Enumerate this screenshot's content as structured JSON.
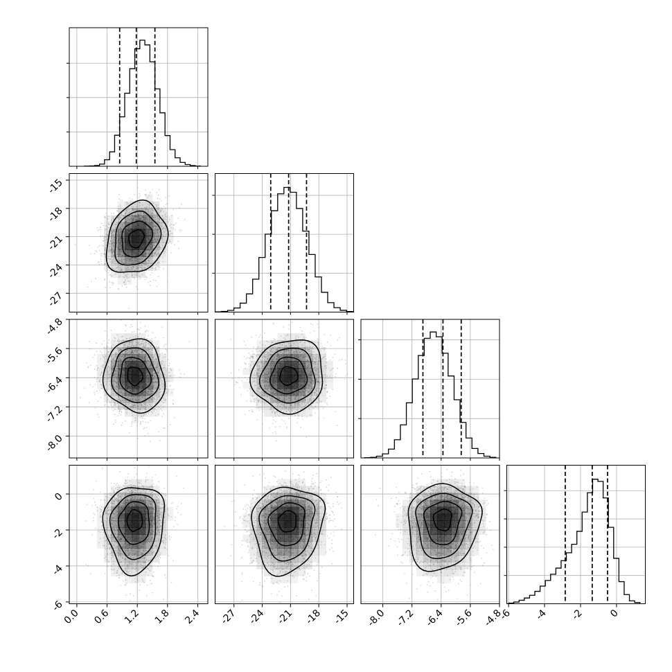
{
  "chart_data": {
    "type": "corner",
    "grid": true,
    "colors": {
      "frame": "#000000",
      "grid": "#b0b0b0",
      "points": "#888888",
      "density": "#000000"
    },
    "params": [
      {
        "ticks": [
          "0.0",
          "0.6",
          "1.2",
          "1.8",
          "2.4"
        ],
        "tick_values": [
          0.0,
          0.6,
          1.2,
          1.8,
          2.4
        ],
        "range": [
          -0.15,
          2.6
        ],
        "hist": {
          "edges_range": [
            0.15,
            2.45
          ],
          "counts": [
            1,
            3,
            7,
            19,
            57,
            126,
            271,
            432,
            638,
            852,
            1026,
            1101,
            1060,
            912,
            676,
            467,
            268,
            145,
            74,
            34,
            15,
            6,
            2
          ],
          "ymax": 1210,
          "y_grid": [
            300,
            600,
            900
          ]
        },
        "quantiles": [
          0.85,
          1.18,
          1.55
        ]
      },
      {
        "ticks": [
          "-27",
          "-24",
          "-21",
          "-18",
          "-15"
        ],
        "tick_values": [
          -27,
          -24,
          -21,
          -18,
          -15
        ],
        "range": [
          -29.0,
          -14.3
        ],
        "hist": {
          "edges_range": [
            -29.0,
            -14.4
          ],
          "counts": [
            3,
            9,
            22,
            53,
            115,
            234,
            423,
            702,
            1001,
            1302,
            1520,
            1602,
            1540,
            1331,
            1040,
            740,
            452,
            254,
            121,
            57,
            23,
            8
          ],
          "ymax": 1780,
          "y_grid": [
            500,
            1000,
            1500
          ]
        },
        "quantiles": [
          -23.1,
          -21.2,
          -19.3
        ]
      },
      {
        "ticks": [
          "-8.0",
          "-7.2",
          "-6.4",
          "-5.6",
          "-4.8"
        ],
        "tick_values": [
          -8.0,
          -7.2,
          -6.4,
          -5.6,
          -4.8
        ],
        "range": [
          -8.6,
          -4.8
        ],
        "hist": {
          "edges_range": [
            -8.5,
            -4.9
          ],
          "counts": [
            3,
            8,
            22,
            52,
            112,
            231,
            420,
            700,
            1003,
            1301,
            1519,
            1600,
            1539,
            1330,
            1041,
            739,
            451,
            253,
            120,
            56,
            22,
            8
          ],
          "ymax": 1760,
          "y_grid": [
            500,
            1000,
            1500
          ]
        },
        "quantiles": [
          -6.9,
          -6.35,
          -5.85
        ]
      },
      {
        "ticks": [
          "-6",
          "-4",
          "-2",
          "0"
        ],
        "tick_values": [
          -6,
          -4,
          -2,
          0
        ],
        "range": [
          -6.1,
          1.6
        ],
        "hist": {
          "edges_range": [
            -6.0,
            1.3
          ],
          "counts": [
            12,
            30,
            62,
            102,
            150,
            220,
            312,
            412,
            522,
            630,
            763,
            902,
            1052,
            1281,
            1622,
            1963,
            2203,
            2164,
            1871,
            1352,
            803,
            391,
            162,
            52,
            22
          ],
          "ymax": 2450,
          "y_grid": [
            500,
            1000,
            1500,
            2000
          ]
        },
        "quantiles": [
          -2.85,
          -1.35,
          -0.5
        ]
      }
    ],
    "pairs": [
      {
        "x": 0,
        "y": 1,
        "center": [
          1.18,
          -21.2
        ],
        "sigma": [
          0.3,
          1.9
        ],
        "rho": 0.2,
        "skew": 0
      },
      {
        "x": 0,
        "y": 2,
        "center": [
          1.15,
          -6.35
        ],
        "sigma": [
          0.3,
          0.5
        ],
        "rho": -0.08,
        "skew": 0
      },
      {
        "x": 1,
        "y": 2,
        "center": [
          -21.2,
          -6.35
        ],
        "sigma": [
          1.9,
          0.5
        ],
        "rho": 0.05,
        "skew": 0
      },
      {
        "x": 0,
        "y": 3,
        "center": [
          1.15,
          -1.35
        ],
        "sigma": [
          0.3,
          0.9
        ],
        "rho": 0.05,
        "skew": 1.2
      },
      {
        "x": 1,
        "y": 3,
        "center": [
          -21.3,
          -1.4
        ],
        "sigma": [
          1.9,
          0.9
        ],
        "rho": 0.1,
        "skew": 1.2
      },
      {
        "x": 2,
        "y": 3,
        "center": [
          -6.35,
          -1.3
        ],
        "sigma": [
          0.5,
          0.9
        ],
        "rho": 0.08,
        "skew": 1.2
      }
    ]
  }
}
